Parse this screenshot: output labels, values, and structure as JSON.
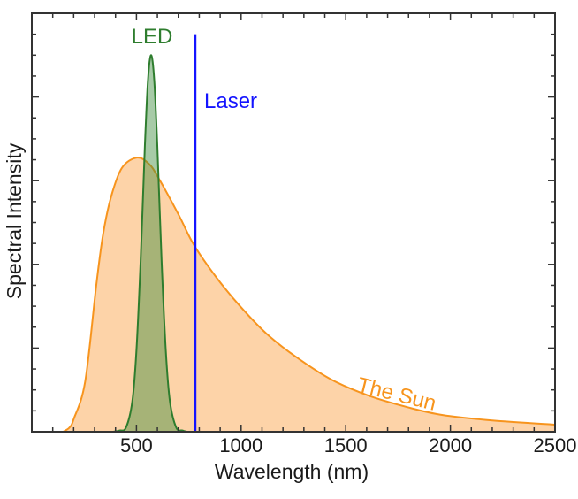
{
  "chart_data": {
    "type": "area",
    "title": "",
    "xlabel": "Wavelength (nm)",
    "ylabel": "Spectral Intensity",
    "xlim": [
      0,
      2500
    ],
    "ylim": [
      0,
      1
    ],
    "x_ticks": [
      500,
      1000,
      1500,
      2000,
      2500
    ],
    "x_minor_step": 100,
    "y_ticks_labeled": false,
    "y_major_step": 0.2,
    "y_minor_step": 0.05,
    "grid": false,
    "series": [
      {
        "name": "The Sun",
        "kind": "area",
        "line_color": "#f7941d",
        "fill_color": "#fdd3a8",
        "x": [
          150,
          180,
          200,
          255,
          308,
          340,
          378,
          430,
          502,
          560,
          607,
          700,
          775,
          880,
          995,
          1120,
          1259,
          1430,
          1611,
          1800,
          1963,
          2200,
          2500
        ],
        "y": [
          0,
          0.01,
          0.03,
          0.12,
          0.35,
          0.47,
          0.56,
          0.63,
          0.655,
          0.64,
          0.605,
          0.52,
          0.446,
          0.37,
          0.3,
          0.235,
          0.18,
          0.125,
          0.086,
          0.058,
          0.04,
          0.027,
          0.017
        ]
      },
      {
        "name": "LED",
        "kind": "area",
        "line_color": "#2e7d2e",
        "fill_color": "#3c8c3c",
        "x": [
          390,
          420,
          450,
          480,
          500,
          520,
          540,
          555,
          570,
          585,
          600,
          620,
          640,
          660,
          690,
          720,
          740
        ],
        "y": [
          0,
          0.003,
          0.01,
          0.072,
          0.195,
          0.41,
          0.68,
          0.84,
          0.9,
          0.84,
          0.68,
          0.41,
          0.195,
          0.072,
          0.01,
          0.003,
          0
        ]
      },
      {
        "name": "Laser",
        "kind": "line",
        "line_color": "#1414ff",
        "x": [
          780,
          780
        ],
        "y": [
          0,
          0.95
        ]
      }
    ]
  }
}
